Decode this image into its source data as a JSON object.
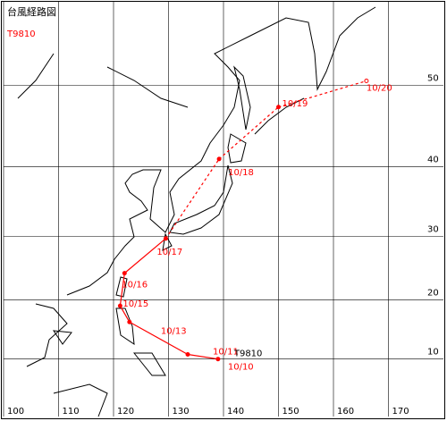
{
  "title": "台風経路図",
  "typhoon_id": "T9810",
  "track_label": "T9810",
  "lonlim": [
    100,
    180
  ],
  "latlim": [
    0,
    58.5
  ],
  "lon_ticks": [
    100,
    110,
    120,
    130,
    140,
    150,
    160,
    170
  ],
  "lat_ticks": [
    10,
    20,
    30,
    40,
    50
  ],
  "track_color": "#ff0000",
  "track": [
    {
      "label": "10/10",
      "lon": 139,
      "lat": 10.0,
      "line_style": "solid"
    },
    {
      "label": "10/11",
      "lon": 133.5,
      "lat": 10.8,
      "line_style": "solid"
    },
    {
      "label": "10/13",
      "lon": 122.9,
      "lat": 16.3,
      "line_style": "solid"
    },
    {
      "label": "10/15",
      "lon": 121.2,
      "lat": 19,
      "line_style": "solid"
    },
    {
      "label": "10/16",
      "lon": 122,
      "lat": 24.3,
      "line_style": "solid"
    },
    {
      "label": "10/17",
      "lon": 129.5,
      "lat": 29.7,
      "line_style": "solid"
    },
    {
      "label": "10/18",
      "lon": 139.2,
      "lat": 41,
      "line_style": "dashed"
    },
    {
      "label": "10/19",
      "lon": 150,
      "lat": 47.5,
      "line_style": "dashed"
    },
    {
      "label": "10/20",
      "lon": 166,
      "lat": 50.5,
      "line_style": "dashed"
    }
  ]
}
